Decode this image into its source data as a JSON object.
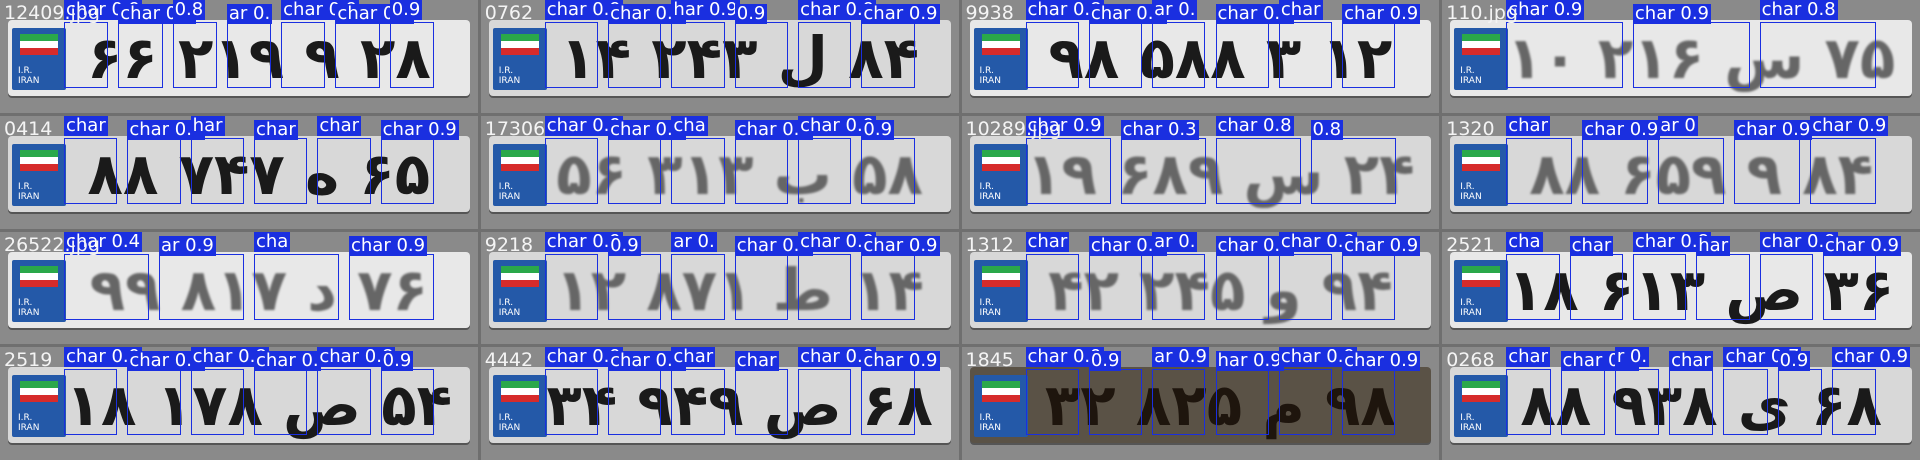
{
  "accent_color": "#1a2fe0",
  "tiles": [
    {
      "filename": "12409.jpg",
      "text": "۲۸ ۹ ۲۱۹ ۶۶",
      "labels": [
        "char 0.9",
        "char 0.6",
        "0.8",
        "ar 0.",
        "char 0.9",
        "char 0.9",
        "0.9"
      ]
    },
    {
      "filename": "0762",
      "text": "۸۴ ل ۲۴۳ ۱۴",
      "labels": [
        "char 0.9",
        "char 0.9",
        "har 0.9",
        "0.9",
        "char 0.9",
        "char 0.9"
      ]
    },
    {
      "filename": "9938",
      "text": "۱۲ ۳ ۵۸۸ ۹۸",
      "labels": [
        "char 0.8",
        "char 0.5",
        "ar 0.",
        "char 0.5",
        "char",
        "char 0.9"
      ]
    },
    {
      "filename": "110.jpg",
      "text": "۷۵ س ۲۱۶ ۱۰",
      "labels": [
        "char 0.9",
        "char 0.9",
        "char 0.8"
      ]
    },
    {
      "filename": "0414",
      "text": "۶۵ ه ۷۴۷ ۸۸",
      "labels": [
        "char",
        "char 0.9",
        "har",
        "char",
        "char",
        "char 0.9"
      ]
    },
    {
      "filename": "17306",
      "text": "۵۸ ب ۳۱۳ ۵۶",
      "labels": [
        "char 0.9",
        "char 0.9",
        "cha",
        "char 0.9",
        "char 0.9",
        "0.9"
      ]
    },
    {
      "filename": "10289.jpg",
      "text": "۲۴ س ۶۸۹ ۱۹",
      "labels": [
        "char 0.9",
        "char 0.3",
        "char 0.8",
        "0.8"
      ]
    },
    {
      "filename": "1320",
      "text": "۸۴ ۹ ۶۵۹ ۸۸",
      "labels": [
        "char",
        "char 0.9",
        "ar 0",
        "char 0.9",
        "char 0.9"
      ]
    },
    {
      "filename": "26522.jpg",
      "text": "۷۶ د ۸۱۷ ۹۹",
      "labels": [
        "char 0.4",
        "ar 0.9",
        "cha",
        "char 0.9"
      ]
    },
    {
      "filename": "9218",
      "text": "۱۴ ط ۸۷۱ ۱۲",
      "labels": [
        "char 0.9",
        "0.9",
        "ar 0.",
        "char 0.9",
        "char 0.9",
        "char 0.9"
      ]
    },
    {
      "filename": "1312",
      "text": "۹۴ و ۲۴۵ ۴۲",
      "labels": [
        "char",
        "char 0.9",
        "ar 0.",
        "char 0.9",
        "char 0.9",
        "char 0.9"
      ]
    },
    {
      "filename": "2521",
      "text": "۳۶ ص ۶۱۳ ۱۸",
      "labels": [
        "cha",
        "char",
        "char 0.8",
        "har",
        "char 0.9",
        "char 0.9"
      ]
    },
    {
      "filename": "2519",
      "text": "۵۴ ص ۱۷۸ ۱۸",
      "labels": [
        "char 0.9",
        "char 0.8",
        "char 0.8",
        "char 0.",
        "char 0.8",
        "0.9"
      ]
    },
    {
      "filename": "4442",
      "text": "۶۸ ص ۹۴۹ ۳۴",
      "labels": [
        "char 0.9",
        "char 0.9",
        "char",
        "char",
        "char 0.9",
        "char 0.9"
      ]
    },
    {
      "filename": "1845",
      "text": "۹۸ م ۸۲۵ ۳۲",
      "labels": [
        "char 0.9",
        "0.9",
        "ar 0.9",
        "har 0.9",
        "char 0.9",
        "char 0.9"
      ]
    },
    {
      "filename": "0268",
      "text": "۶۸ ی ۹۳۸ ۸۸",
      "labels": [
        "char",
        "char 0.4",
        "r 0.",
        "char",
        "char 0.7",
        "0.9",
        "char 0.9"
      ]
    }
  ]
}
